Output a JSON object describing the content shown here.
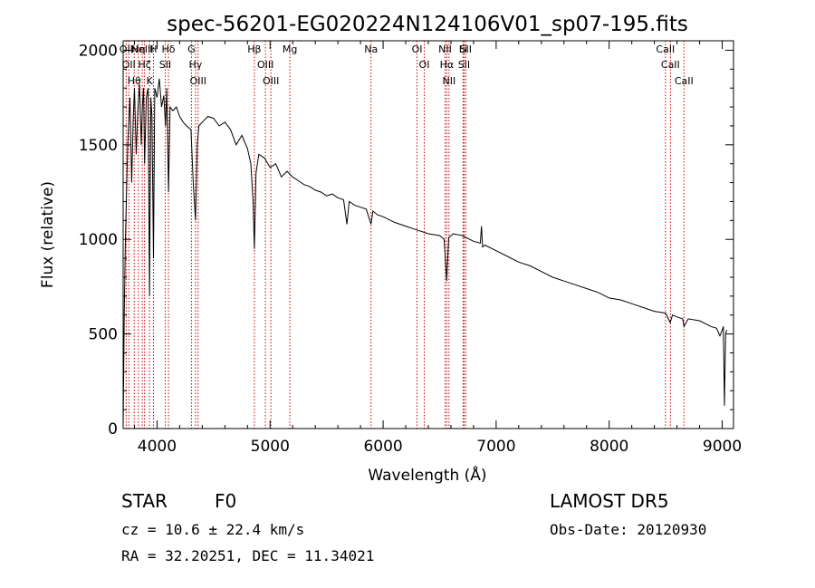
{
  "chart_data": {
    "type": "line",
    "title": "spec-56201-EG020224N124106V01_sp07-195.fits",
    "xlabel": "Wavelength (Å)",
    "ylabel": "Flux (relative)",
    "xlim": [
      3700,
      9100
    ],
    "ylim": [
      0,
      2050
    ],
    "x_ticks": [
      4000,
      5000,
      6000,
      7000,
      8000,
      9000
    ],
    "x_tick_labels": [
      "4000",
      "5000",
      "6000",
      "7000",
      "8000",
      "9000"
    ],
    "y_ticks": [
      0,
      500,
      1000,
      1500,
      2000
    ],
    "y_tick_labels": [
      "0",
      "500",
      "1000",
      "1500",
      "2000"
    ],
    "grid": false,
    "series": [
      {
        "x": [
          3700,
          3710,
          3720,
          3740,
          3760,
          3775,
          3790,
          3800,
          3815,
          3830,
          3845,
          3860,
          3870,
          3880,
          3890,
          3905,
          3920,
          3933,
          3945,
          3955,
          3968,
          3980,
          4000,
          4020,
          4040,
          4060,
          4075,
          4085,
          4101,
          4115,
          4140,
          4170,
          4200,
          4230,
          4260,
          4300,
          4320,
          4340,
          4355,
          4370,
          4400,
          4450,
          4500,
          4550,
          4600,
          4650,
          4700,
          4750,
          4800,
          4830,
          4850,
          4861,
          4875,
          4900,
          4950,
          5000,
          5050,
          5100,
          5150,
          5200,
          5250,
          5300,
          5350,
          5400,
          5450,
          5500,
          5550,
          5600,
          5650,
          5680,
          5700,
          5750,
          5800,
          5850,
          5893,
          5910,
          5950,
          6000,
          6100,
          6200,
          6300,
          6400,
          6500,
          6540,
          6563,
          6580,
          6620,
          6700,
          6800,
          6860,
          6870,
          6880,
          6900,
          7000,
          7100,
          7200,
          7300,
          7400,
          7500,
          7600,
          7700,
          7800,
          7900,
          8000,
          8100,
          8200,
          8300,
          8400,
          8500,
          8540,
          8560,
          8600,
          8650,
          8662,
          8700,
          8800,
          8900,
          8950,
          8980,
          9000,
          9010,
          9020,
          9030,
          9040
        ],
        "values": [
          0,
          600,
          1000,
          1500,
          1750,
          1300,
          1650,
          1800,
          1450,
          1680,
          1820,
          1500,
          1700,
          1800,
          1400,
          1750,
          1800,
          700,
          1750,
          1650,
          900,
          1800,
          1750,
          1850,
          1700,
          1760,
          1600,
          1800,
          1250,
          1700,
          1680,
          1700,
          1650,
          1620,
          1600,
          1580,
          1300,
          1100,
          1500,
          1600,
          1620,
          1650,
          1640,
          1600,
          1620,
          1580,
          1500,
          1550,
          1480,
          1400,
          1200,
          950,
          1350,
          1450,
          1430,
          1380,
          1400,
          1330,
          1360,
          1330,
          1310,
          1290,
          1280,
          1260,
          1250,
          1230,
          1240,
          1220,
          1210,
          1080,
          1200,
          1180,
          1170,
          1160,
          1080,
          1150,
          1130,
          1120,
          1090,
          1070,
          1050,
          1030,
          1020,
          1000,
          780,
          1010,
          1030,
          1020,
          990,
          980,
          1070,
          960,
          970,
          940,
          910,
          880,
          860,
          830,
          800,
          780,
          760,
          740,
          720,
          690,
          680,
          660,
          640,
          620,
          610,
          560,
          600,
          590,
          580,
          540,
          580,
          570,
          540,
          530,
          490,
          520,
          540,
          120,
          500,
          520
        ]
      }
    ],
    "line_markers": [
      {
        "x": 3727,
        "label": "OII"
      },
      {
        "x": 3750,
        "label": "OII"
      },
      {
        "x": 3798,
        "label": "Hθ"
      },
      {
        "x": 3835,
        "label": "Hη"
      },
      {
        "x": 3869,
        "label": "NeIII"
      },
      {
        "x": 3889,
        "label": "Hζ"
      },
      {
        "x": 3933,
        "label": "K"
      },
      {
        "x": 3968,
        "label": "H"
      },
      {
        "x": 4072,
        "label": "SII"
      },
      {
        "x": 4101,
        "label": "Hδ"
      },
      {
        "x": 4304,
        "label": "G"
      },
      {
        "x": 4340,
        "label": "Hγ"
      },
      {
        "x": 4363,
        "label": "OIII"
      },
      {
        "x": 4861,
        "label": "Hβ"
      },
      {
        "x": 4959,
        "label": "OIII"
      },
      {
        "x": 5007,
        "label": "OIII"
      },
      {
        "x": 5175,
        "label": "Mg"
      },
      {
        "x": 5893,
        "label": "Na"
      },
      {
        "x": 6300,
        "label": "OI"
      },
      {
        "x": 6364,
        "label": "OI"
      },
      {
        "x": 6548,
        "label": "NII"
      },
      {
        "x": 6563,
        "label": "Hα"
      },
      {
        "x": 6583,
        "label": "NII"
      },
      {
        "x": 6707,
        "label": "Li"
      },
      {
        "x": 6716,
        "label": "SII"
      },
      {
        "x": 6731,
        "label": "SII"
      },
      {
        "x": 8498,
        "label": "CaII"
      },
      {
        "x": 8542,
        "label": "CaII"
      },
      {
        "x": 8662,
        "label": "CaII"
      }
    ]
  },
  "info": {
    "class": "STAR",
    "subclass": "F0",
    "survey": "LAMOST DR5",
    "cz": "cz = 10.6 ± 22.4 km/s",
    "obs_date": "Obs-Date: 20120930",
    "coords": "RA =  32.20251, DEC =  11.34021"
  }
}
